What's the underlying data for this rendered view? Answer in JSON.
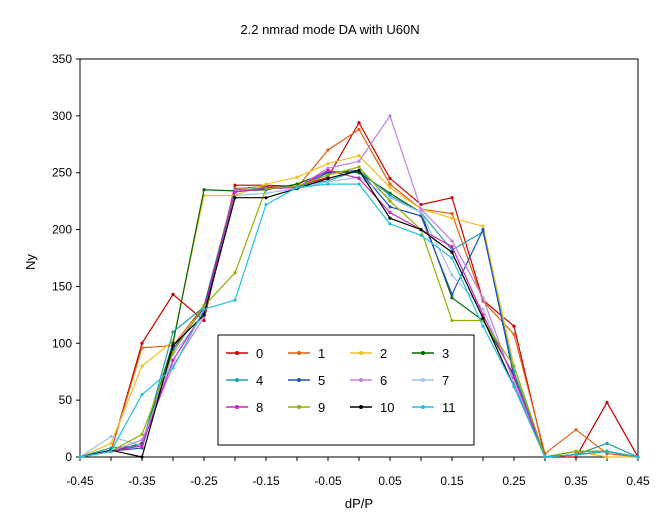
{
  "chart_data": {
    "type": "line",
    "title": "2.2 nmrad mode DA with U60N",
    "xlabel": "dP/P",
    "ylabel": "Ny",
    "xlim": [
      -0.45,
      0.45
    ],
    "ylim": [
      0,
      350
    ],
    "x_ticks": [
      "-0.45",
      "-0.35",
      "-0.25",
      "-0.15",
      "-0.05",
      "0.05",
      "0.15",
      "0.25",
      "0.35",
      "0.45"
    ],
    "y_ticks": [
      "0",
      "50",
      "100",
      "150",
      "200",
      "250",
      "300",
      "350"
    ],
    "grid": false,
    "legend_position": "bottom-center",
    "x": [
      -0.45,
      -0.4,
      -0.35,
      -0.3,
      -0.25,
      -0.2,
      -0.15,
      -0.1,
      -0.05,
      0.0,
      0.05,
      0.1,
      0.15,
      0.2,
      0.25,
      0.3,
      0.35,
      0.4,
      0.45
    ],
    "series": [
      {
        "name": "0",
        "color": "#cc0000",
        "values": [
          0,
          5,
          100,
          143,
          120,
          239,
          239,
          238,
          246,
          294,
          245,
          222,
          228,
          138,
          115,
          0,
          0,
          48,
          0
        ]
      },
      {
        "name": "1",
        "color": "#e06010",
        "values": [
          0,
          5,
          96,
          98,
          133,
          236,
          238,
          237,
          270,
          288,
          240,
          218,
          214,
          137,
          108,
          3,
          24,
          3,
          0
        ]
      },
      {
        "name": "2",
        "color": "#f0c020",
        "values": [
          0,
          12,
          80,
          102,
          230,
          230,
          240,
          246,
          258,
          265,
          237,
          218,
          210,
          203,
          80,
          0,
          5,
          0,
          0
        ]
      },
      {
        "name": "3",
        "color": "#006600",
        "values": [
          0,
          5,
          12,
          100,
          235,
          234,
          235,
          240,
          251,
          250,
          232,
          215,
          140,
          120,
          72,
          0,
          5,
          5,
          0
        ]
      },
      {
        "name": "4",
        "color": "#20a0b0",
        "values": [
          0,
          8,
          10,
          110,
          132,
          235,
          236,
          238,
          243,
          252,
          230,
          215,
          182,
          198,
          75,
          0,
          2,
          12,
          0
        ]
      },
      {
        "name": "5",
        "color": "#2050c0",
        "values": [
          0,
          5,
          8,
          95,
          131,
          233,
          237,
          237,
          250,
          252,
          220,
          212,
          143,
          200,
          70,
          0,
          2,
          5,
          0
        ]
      },
      {
        "name": "6",
        "color": "#c080e0",
        "values": [
          0,
          5,
          15,
          80,
          123,
          234,
          236,
          237,
          254,
          260,
          300,
          218,
          190,
          140,
          65,
          0,
          2,
          5,
          0
        ]
      },
      {
        "name": "7",
        "color": "#a0c0f0",
        "values": [
          0,
          18,
          10,
          90,
          125,
          230,
          232,
          236,
          242,
          246,
          228,
          215,
          160,
          130,
          68,
          0,
          2,
          5,
          0
        ]
      },
      {
        "name": "8",
        "color": "#d020c0",
        "values": [
          0,
          5,
          10,
          85,
          128,
          233,
          236,
          237,
          252,
          245,
          215,
          200,
          185,
          125,
          70,
          0,
          2,
          5,
          0
        ]
      },
      {
        "name": "9",
        "color": "#90b000",
        "values": [
          0,
          5,
          20,
          92,
          133,
          162,
          236,
          238,
          248,
          255,
          225,
          200,
          120,
          120,
          80,
          0,
          5,
          5,
          0
        ]
      },
      {
        "name": "10",
        "color": "#000000",
        "values": [
          0,
          6,
          0,
          98,
          125,
          228,
          228,
          236,
          245,
          252,
          210,
          200,
          180,
          122,
          62,
          0,
          2,
          5,
          0
        ]
      },
      {
        "name": "11",
        "color": "#20c0e0",
        "values": [
          0,
          5,
          55,
          78,
          130,
          138,
          222,
          237,
          240,
          240,
          205,
          195,
          175,
          115,
          62,
          0,
          2,
          5,
          0
        ]
      }
    ]
  }
}
